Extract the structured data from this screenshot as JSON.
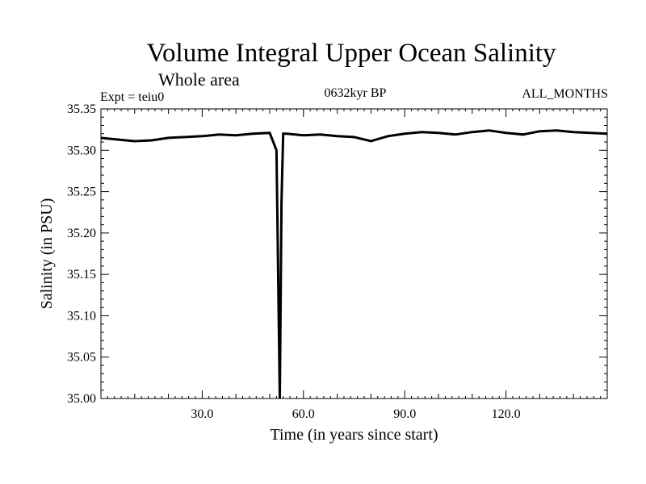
{
  "title": "Volume Integral Upper Ocean Salinity",
  "subtitle": "Whole area",
  "experiment": "Expt = teiu0",
  "period": "0632kyr BP",
  "months": "ALL_MONTHS",
  "colors": {
    "line": "#000000",
    "axis": "#000000",
    "background": "#ffffff"
  },
  "chart_data": {
    "type": "line",
    "title": "Volume Integral Upper Ocean Salinity",
    "xlabel": "Time (in years since start)",
    "ylabel": "Salinity (in PSU)",
    "xlim": [
      0,
      150
    ],
    "ylim": [
      35.0,
      35.35
    ],
    "xticks": [
      30,
      60,
      90,
      120
    ],
    "xtick_labels": [
      "30.0",
      "60.0",
      "90.0",
      "120.0"
    ],
    "yticks": [
      35.0,
      35.05,
      35.1,
      35.15,
      35.2,
      35.25,
      35.3,
      35.35
    ],
    "ytick_labels": [
      "35.00",
      "35.05",
      "35.10",
      "35.15",
      "35.20",
      "35.25",
      "35.30",
      "35.35"
    ],
    "grid": false,
    "series": [
      {
        "x": [
          0,
          5,
          10,
          15,
          20,
          25,
          30,
          35,
          40,
          45,
          50,
          52,
          53,
          53.5,
          54,
          55,
          60,
          65,
          70,
          75,
          80,
          85,
          90,
          95,
          100,
          105,
          110,
          115,
          120,
          125,
          130,
          135,
          140,
          145,
          150
        ],
        "y": [
          35.315,
          35.313,
          35.311,
          35.312,
          35.315,
          35.316,
          35.317,
          35.319,
          35.318,
          35.32,
          35.321,
          35.3,
          35.0,
          35.237,
          35.32,
          35.32,
          35.318,
          35.319,
          35.317,
          35.316,
          35.311,
          35.317,
          35.32,
          35.322,
          35.321,
          35.319,
          35.322,
          35.324,
          35.321,
          35.319,
          35.323,
          35.324,
          35.322,
          35.321,
          35.32
        ]
      }
    ]
  }
}
